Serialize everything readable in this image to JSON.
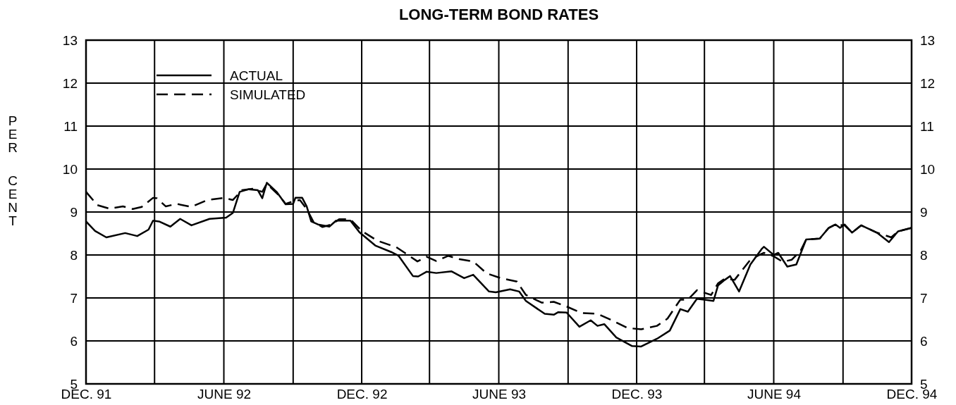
{
  "chart_data": {
    "type": "line",
    "title": "LONG-TERM BOND RATES",
    "ylabel": "PER CENT",
    "xlim": [
      "1991-12",
      "1994-12"
    ],
    "xticks": [
      {
        "value": "1991-12",
        "label": "DEC. 91"
      },
      {
        "value": "1992-03",
        "label": null
      },
      {
        "value": "1992-06",
        "label": "JUNE 92"
      },
      {
        "value": "1992-09",
        "label": null
      },
      {
        "value": "1992-12",
        "label": "DEC. 92"
      },
      {
        "value": "1993-03",
        "label": null
      },
      {
        "value": "1993-06",
        "label": "JUNE 93"
      },
      {
        "value": "1993-09",
        "label": null
      },
      {
        "value": "1993-12",
        "label": "DEC. 93"
      },
      {
        "value": "1994-03",
        "label": null
      },
      {
        "value": "1994-06",
        "label": "JUNE 94"
      },
      {
        "value": "1994-09",
        "label": null
      },
      {
        "value": "1994-12",
        "label": "DEC. 94"
      }
    ],
    "ylim": [
      5,
      13
    ],
    "yticks": [
      5,
      6,
      7,
      8,
      9,
      10,
      11,
      12,
      13
    ],
    "y2lim": [
      5,
      13
    ],
    "y2ticks": [
      5,
      6,
      7,
      8,
      9,
      10,
      11,
      12,
      13
    ],
    "grid": true,
    "legend": "top left",
    "series": [
      {
        "name": "ACTUAL",
        "color": "#000000",
        "line_style": "solid",
        "x": [
          "1991-12-01",
          "1991-12-13",
          "1991-12-28",
          "1992-01-22",
          "1992-02-07",
          "1992-02-22",
          "1992-02-28",
          "1992-03-07",
          "1992-03-22",
          "1992-04-04",
          "1992-04-19",
          "1992-05-13",
          "1992-06-04",
          "1992-06-13",
          "1992-06-22",
          "1992-07-04",
          "1992-07-16",
          "1992-07-22",
          "1992-07-28",
          "1992-08-10",
          "1992-08-22",
          "1992-09-01",
          "1992-09-04",
          "1992-09-13",
          "1992-09-19",
          "1992-09-25",
          "1992-10-04",
          "1992-10-19",
          "1992-10-28",
          "1992-11-16",
          "1992-11-28",
          "1992-12-19",
          "1993-01-09",
          "1993-01-19",
          "1993-02-07",
          "1993-02-14",
          "1993-02-25",
          "1993-03-10",
          "1993-03-30",
          "1993-04-16",
          "1993-04-28",
          "1993-05-19",
          "1993-05-28",
          "1993-06-16",
          "1993-06-28",
          "1993-07-07",
          "1993-08-01",
          "1993-08-13",
          "1993-08-19",
          "1993-08-30",
          "1993-09-16",
          "1993-10-01",
          "1993-10-10",
          "1993-10-19",
          "1993-11-04",
          "1993-11-25",
          "1993-12-07",
          "1993-12-28",
          "1994-01-14",
          "1994-01-28",
          "1994-02-07",
          "1994-02-19",
          "1994-03-01",
          "1994-03-13",
          "1994-03-19",
          "1994-03-28",
          "1994-04-04",
          "1994-04-16",
          "1994-05-01",
          "1994-05-16",
          "1994-05-19",
          "1994-06-01",
          "1994-06-07",
          "1994-06-19",
          "1994-07-01",
          "1994-07-14",
          "1994-08-01",
          "1994-08-13",
          "1994-08-22",
          "1994-08-28",
          "1994-09-03",
          "1994-09-13",
          "1994-09-25",
          "1994-10-16",
          "1994-11-01",
          "1994-11-13",
          "1994-12-01"
        ],
        "values": [
          8.78,
          8.56,
          8.41,
          8.51,
          8.44,
          8.59,
          8.8,
          8.78,
          8.66,
          8.84,
          8.69,
          8.84,
          8.87,
          8.98,
          9.47,
          9.53,
          9.51,
          9.32,
          9.68,
          9.47,
          9.18,
          9.19,
          9.33,
          9.33,
          9.13,
          8.78,
          8.71,
          8.66,
          8.8,
          8.8,
          8.53,
          8.22,
          8.07,
          7.98,
          7.51,
          7.5,
          7.61,
          7.58,
          7.62,
          7.46,
          7.54,
          7.15,
          7.13,
          7.2,
          7.15,
          6.93,
          6.63,
          6.61,
          6.67,
          6.66,
          6.33,
          6.48,
          6.35,
          6.39,
          6.08,
          5.88,
          5.87,
          6.05,
          6.24,
          6.74,
          6.68,
          6.98,
          6.96,
          6.93,
          7.29,
          7.42,
          7.51,
          7.15,
          7.78,
          8.14,
          8.19,
          8.0,
          8.05,
          7.73,
          7.78,
          8.36,
          8.38,
          8.63,
          8.71,
          8.63,
          8.71,
          8.52,
          8.69,
          8.52,
          8.3,
          8.55,
          8.63
        ]
      },
      {
        "name": "SIMULATED",
        "color": "#000000",
        "line_style": "dashed",
        "x": [
          "1991-12-01",
          "1991-12-16",
          "1992-01-01",
          "1992-01-19",
          "1992-02-01",
          "1992-02-13",
          "1992-02-28",
          "1992-03-04",
          "1992-03-16",
          "1992-03-30",
          "1992-04-19",
          "1992-05-10",
          "1992-06-01",
          "1992-06-13",
          "1992-06-25",
          "1992-07-09",
          "1992-07-22",
          "1992-07-28",
          "1992-08-13",
          "1992-08-22",
          "1992-09-01",
          "1992-09-10",
          "1992-09-19",
          "1992-09-28",
          "1992-10-10",
          "1992-10-22",
          "1992-11-01",
          "1992-11-16",
          "1992-12-01",
          "1992-12-22",
          "1993-01-16",
          "1993-01-28",
          "1993-02-13",
          "1993-02-25",
          "1993-03-10",
          "1993-03-26",
          "1993-04-10",
          "1993-04-28",
          "1993-05-16",
          "1993-06-04",
          "1993-06-25",
          "1993-07-07",
          "1993-07-28",
          "1993-08-13",
          "1993-08-30",
          "1993-09-19",
          "1993-10-10",
          "1993-10-28",
          "1993-11-19",
          "1993-12-07",
          "1993-12-28",
          "1994-01-11",
          "1994-01-28",
          "1994-02-07",
          "1994-02-19",
          "1994-03-01",
          "1994-03-10",
          "1994-03-19",
          "1994-03-28",
          "1994-04-10",
          "1994-05-01",
          "1994-05-13",
          "1994-05-19",
          "1994-06-01",
          "1994-06-13",
          "1994-06-25",
          "1994-07-07",
          "1994-07-14",
          "1994-08-01",
          "1994-08-13",
          "1994-08-22",
          "1994-09-03",
          "1994-09-13",
          "1994-09-25",
          "1994-10-16",
          "1994-11-04",
          "1994-11-13",
          "1994-12-01"
        ],
        "values": [
          9.47,
          9.16,
          9.08,
          9.13,
          9.07,
          9.12,
          9.33,
          9.32,
          9.13,
          9.19,
          9.12,
          9.28,
          9.33,
          9.28,
          9.51,
          9.54,
          9.47,
          9.66,
          9.39,
          9.19,
          9.25,
          9.28,
          9.07,
          8.77,
          8.65,
          8.71,
          8.83,
          8.83,
          8.56,
          8.33,
          8.18,
          8.04,
          7.85,
          7.96,
          7.86,
          7.98,
          7.9,
          7.85,
          7.57,
          7.46,
          7.38,
          7.07,
          6.89,
          6.91,
          6.8,
          6.65,
          6.63,
          6.49,
          6.3,
          6.27,
          6.35,
          6.52,
          6.96,
          6.96,
          7.18,
          7.12,
          7.07,
          7.34,
          7.45,
          7.42,
          7.89,
          8.0,
          8.05,
          7.97,
          7.84,
          7.89,
          8.11,
          8.36,
          8.38,
          8.63,
          8.71,
          8.69,
          8.52,
          8.69,
          8.52,
          8.41,
          8.55,
          8.63
        ]
      }
    ]
  }
}
